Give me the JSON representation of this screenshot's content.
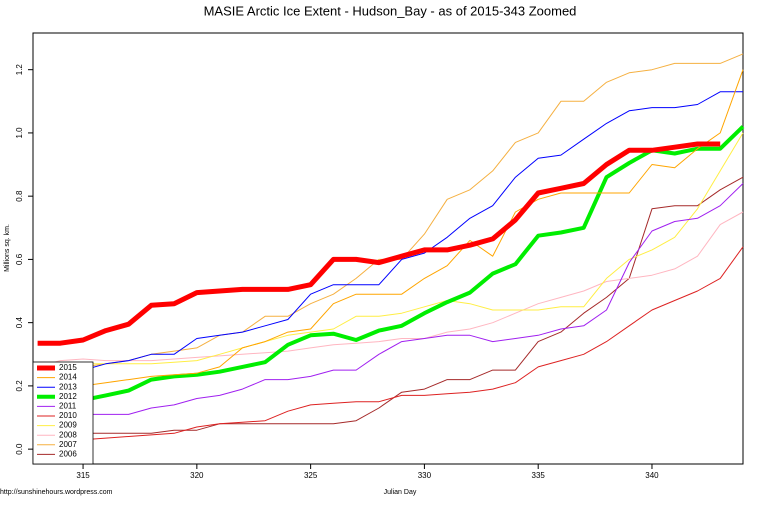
{
  "chart_data": {
    "type": "line",
    "title": "MASIE Arctic Ice Extent - Hudson_Bay - as of 2015-343 Zoomed",
    "x_label": "Julian Day",
    "y_label": "Millions sq. km.",
    "source": "http://sunshinehours.wordpress.com",
    "x": [
      313,
      314,
      315,
      316,
      317,
      318,
      319,
      320,
      321,
      322,
      323,
      324,
      325,
      326,
      327,
      328,
      329,
      330,
      331,
      332,
      333,
      334,
      335,
      336,
      337,
      338,
      339,
      340,
      341,
      342,
      343,
      344
    ],
    "xlim": [
      312.8,
      344
    ],
    "ylim": [
      -0.047,
      1.316
    ],
    "xticks": [
      315,
      320,
      325,
      330,
      335,
      340
    ],
    "yticks": [
      {
        "value": 0,
        "label": "0.0"
      },
      0.2,
      0.4,
      0.6,
      0.8,
      {
        "value": 1,
        "label": "1.0"
      },
      1.2
    ],
    "legend": "bottom-left",
    "series": [
      {
        "name": "2015",
        "color": "#ff0000",
        "line_width": 5,
        "values": [
          0.335,
          0.335,
          0.345,
          0.375,
          0.395,
          0.455,
          0.46,
          0.495,
          0.5,
          0.505,
          0.505,
          0.505,
          0.52,
          0.6,
          0.6,
          0.59,
          0.61,
          0.63,
          0.63,
          0.645,
          0.665,
          0.725,
          0.81,
          0.825,
          0.84,
          0.9,
          0.945,
          0.945,
          0.955,
          0.965,
          0.965,
          null
        ]
      },
      {
        "name": "2014",
        "color": "#ffa500",
        "line_width": 1,
        "values": [
          0.17,
          0.19,
          0.2,
          0.21,
          0.22,
          0.23,
          0.235,
          0.24,
          0.26,
          0.32,
          0.34,
          0.37,
          0.38,
          0.46,
          0.49,
          0.49,
          0.49,
          0.54,
          0.58,
          0.66,
          0.61,
          0.75,
          0.79,
          0.81,
          0.81,
          0.81,
          0.81,
          0.9,
          0.89,
          0.95,
          1.0,
          1.2
        ]
      },
      {
        "name": "2013",
        "color": "#0000ff",
        "line_width": 1,
        "values": [
          0.22,
          0.24,
          0.25,
          0.27,
          0.28,
          0.3,
          0.3,
          0.35,
          0.36,
          0.37,
          0.39,
          0.41,
          0.49,
          0.52,
          0.52,
          0.52,
          0.6,
          0.62,
          0.67,
          0.73,
          0.77,
          0.86,
          0.92,
          0.93,
          0.98,
          1.03,
          1.07,
          1.08,
          1.08,
          1.09,
          1.13,
          1.13
        ]
      },
      {
        "name": "2012",
        "color": "#00ee00",
        "line_width": 4,
        "values": [
          0.14,
          0.14,
          0.155,
          0.17,
          0.185,
          0.22,
          0.23,
          0.235,
          0.245,
          0.26,
          0.275,
          0.33,
          0.36,
          0.365,
          0.345,
          0.375,
          0.39,
          0.43,
          0.465,
          0.495,
          0.555,
          0.585,
          0.675,
          0.685,
          0.7,
          0.86,
          0.905,
          0.945,
          0.935,
          0.95,
          0.95,
          1.02
        ]
      },
      {
        "name": "2011",
        "color": "#a020f0",
        "line_width": 1,
        "values": [
          0.11,
          0.11,
          0.11,
          0.11,
          0.11,
          0.13,
          0.14,
          0.16,
          0.17,
          0.19,
          0.22,
          0.22,
          0.23,
          0.25,
          0.25,
          0.3,
          0.34,
          0.35,
          0.36,
          0.36,
          0.34,
          0.35,
          0.36,
          0.38,
          0.39,
          0.44,
          0.59,
          0.69,
          0.72,
          0.73,
          0.77,
          0.84
        ]
      },
      {
        "name": "2010",
        "color": "#dd2222",
        "line_width": 1,
        "values": [
          0.02,
          0.025,
          0.03,
          0.035,
          0.04,
          0.045,
          0.05,
          0.07,
          0.08,
          0.085,
          0.09,
          0.12,
          0.14,
          0.145,
          0.15,
          0.15,
          0.17,
          0.17,
          0.175,
          0.18,
          0.19,
          0.21,
          0.26,
          0.28,
          0.3,
          0.34,
          0.39,
          0.44,
          0.47,
          0.5,
          0.54,
          0.64
        ]
      },
      {
        "name": "2009",
        "color": "#ffee44",
        "line_width": 1,
        "values": [
          0.26,
          0.27,
          0.27,
          0.27,
          0.27,
          0.27,
          0.275,
          0.28,
          0.3,
          0.32,
          0.34,
          0.36,
          0.37,
          0.38,
          0.42,
          0.42,
          0.43,
          0.45,
          0.47,
          0.46,
          0.44,
          0.44,
          0.44,
          0.45,
          0.45,
          0.54,
          0.6,
          0.63,
          0.67,
          0.76,
          0.88,
          1.0
        ]
      },
      {
        "name": "2008",
        "color": "#ffb6c1",
        "line_width": 1,
        "values": [
          0.26,
          0.28,
          0.285,
          0.28,
          0.28,
          0.28,
          0.285,
          0.29,
          0.295,
          0.3,
          0.305,
          0.31,
          0.32,
          0.33,
          0.335,
          0.34,
          0.35,
          0.35,
          0.37,
          0.38,
          0.4,
          0.43,
          0.46,
          0.48,
          0.5,
          0.53,
          0.54,
          0.55,
          0.57,
          0.61,
          0.71,
          0.75
        ]
      },
      {
        "name": "2007",
        "color": "#f5b041",
        "line_width": 1,
        "values": [
          0.25,
          0.25,
          0.26,
          0.27,
          0.28,
          0.3,
          0.31,
          0.32,
          0.36,
          0.37,
          0.42,
          0.42,
          0.46,
          0.49,
          0.54,
          0.6,
          0.6,
          0.68,
          0.79,
          0.82,
          0.88,
          0.97,
          1.0,
          1.1,
          1.1,
          1.16,
          1.19,
          1.2,
          1.22,
          1.22,
          1.22,
          1.25
        ]
      },
      {
        "name": "2006",
        "color": "#a52a2a",
        "line_width": 1,
        "values": [
          0.05,
          0.05,
          0.05,
          0.05,
          0.05,
          0.05,
          0.06,
          0.06,
          0.08,
          0.08,
          0.08,
          0.08,
          0.08,
          0.08,
          0.09,
          0.13,
          0.18,
          0.19,
          0.22,
          0.22,
          0.25,
          0.25,
          0.34,
          0.37,
          0.43,
          0.48,
          0.54,
          0.76,
          0.77,
          0.77,
          0.82,
          0.86
        ]
      }
    ]
  }
}
